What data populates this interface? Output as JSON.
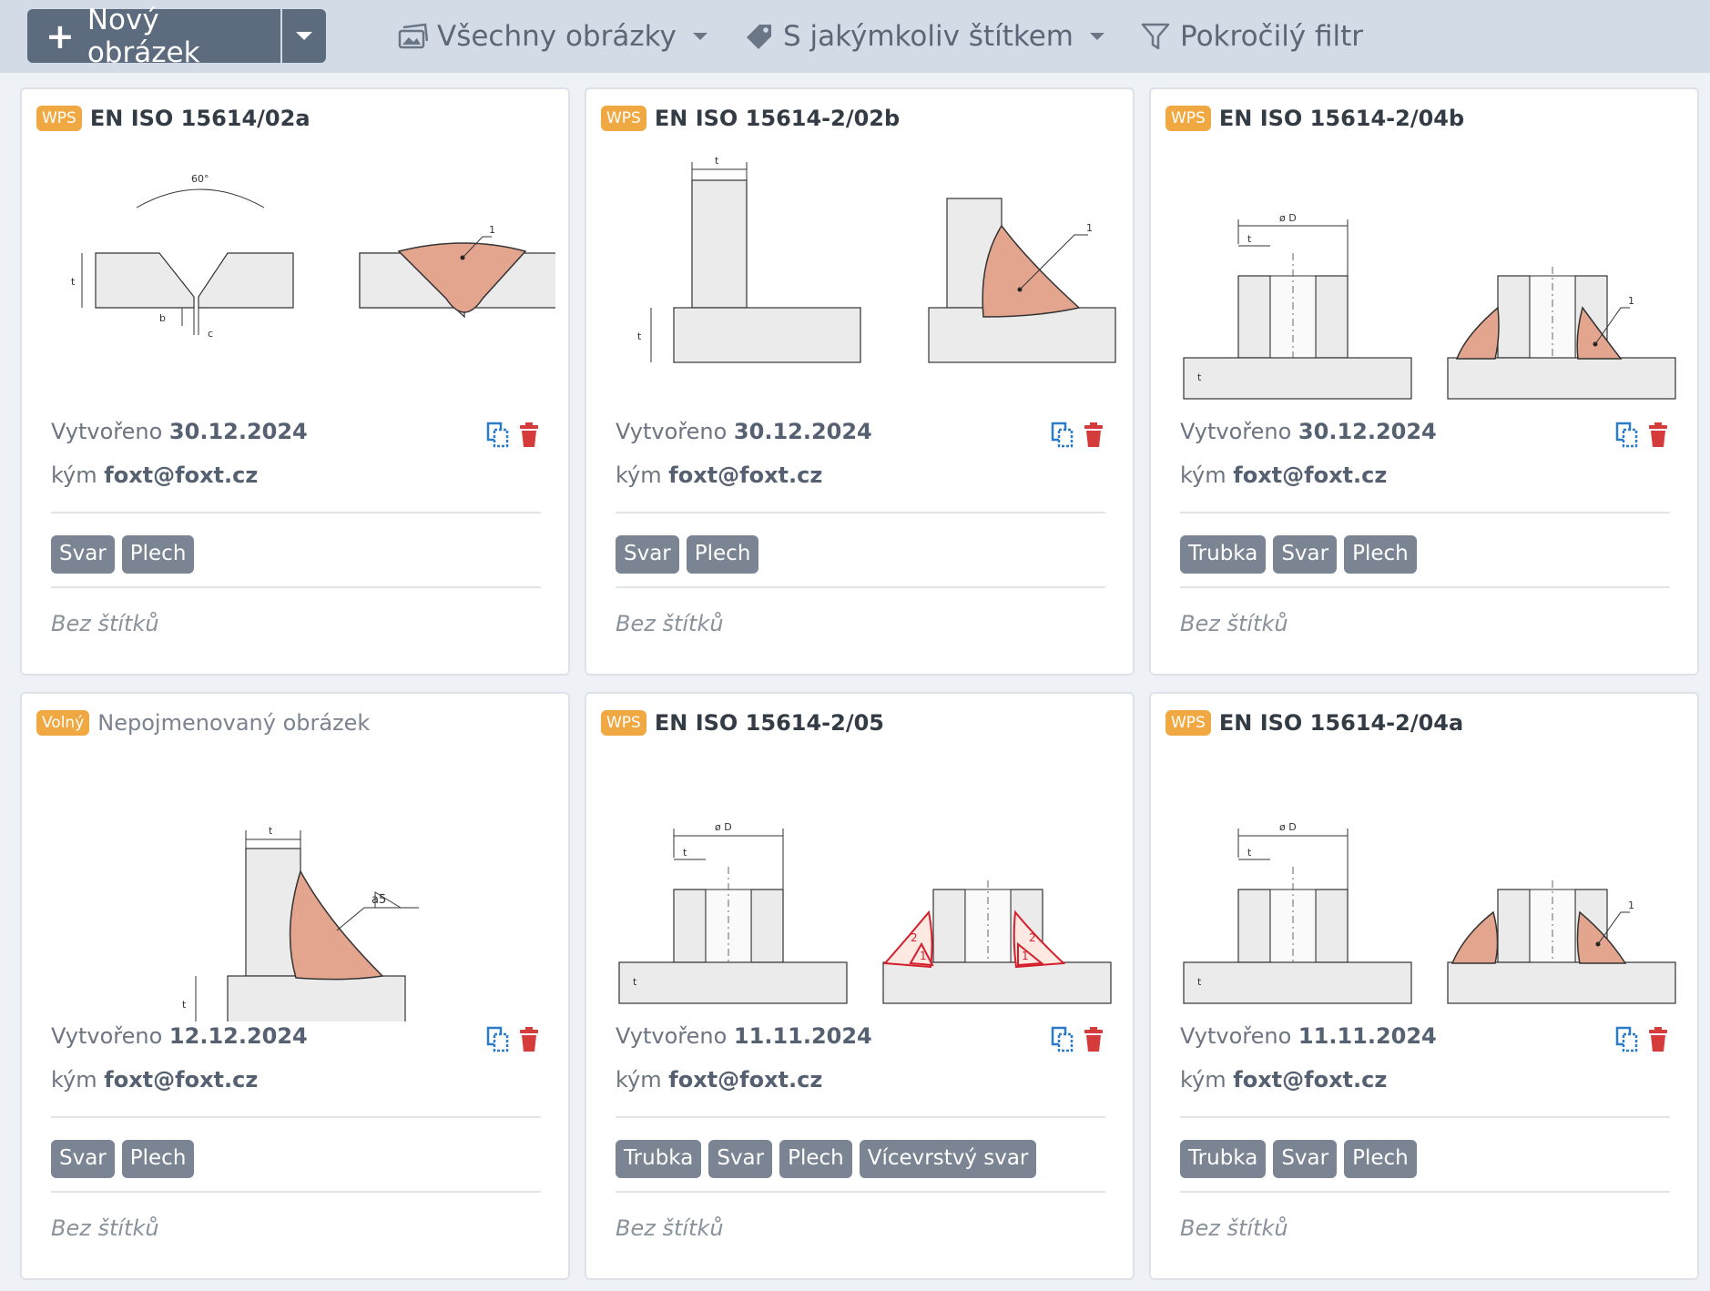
{
  "toolbar": {
    "new_label": "Nový obrázek",
    "filter_images": "Všechny obrázky",
    "filter_tags": "S jakýmkoliv štítkem",
    "advanced_filter": "Pokročilý filtr"
  },
  "labels": {
    "created": "Vytvořeno",
    "by": "kým",
    "no_labels": "Bez štítků"
  },
  "colors": {
    "accent": "#f0a942",
    "toolbar_bg": "#d3dbe6",
    "button": "#5c6b7e",
    "tag_bg": "#7a8492",
    "delete": "#d63b3b",
    "copy": "#2a7bc9"
  },
  "cards": [
    {
      "badge": "WPS",
      "title": "EN ISO 15614/02a",
      "date": "30.12.2024",
      "author": "foxt@foxt.cz",
      "tags": [
        "Svar",
        "Plech"
      ],
      "drawing": {
        "angle": "60°",
        "t": "t",
        "b": "b",
        "c": "c",
        "n1": "1"
      }
    },
    {
      "badge": "WPS",
      "title": "EN ISO 15614-2/02b",
      "date": "30.12.2024",
      "author": "foxt@foxt.cz",
      "tags": [
        "Svar",
        "Plech"
      ],
      "drawing": {
        "t2": "t",
        "t1": "t",
        "n1": "1"
      }
    },
    {
      "badge": "WPS",
      "title": "EN ISO 15614-2/04b",
      "date": "30.12.2024",
      "author": "foxt@foxt.cz",
      "tags": [
        "Trubka",
        "Svar",
        "Plech"
      ],
      "drawing": {
        "d": "ø D",
        "t": "t",
        "t2": "t",
        "n1": "1"
      }
    },
    {
      "badge": "Volný",
      "title": "Nepojmenovaný obrázek",
      "date": "12.12.2024",
      "author": "foxt@foxt.cz",
      "tags": [
        "Svar",
        "Plech"
      ],
      "drawing": {
        "t2": "t",
        "t1": "t",
        "a": "a5"
      }
    },
    {
      "badge": "WPS",
      "title": "EN ISO 15614-2/05",
      "date": "11.11.2024",
      "author": "foxt@foxt.cz",
      "tags": [
        "Trubka",
        "Svar",
        "Plech",
        "Vícevrstvý svar"
      ],
      "drawing": {
        "d": "ø D",
        "t": "t",
        "t2": "t",
        "n1": "1",
        "n2": "2"
      }
    },
    {
      "badge": "WPS",
      "title": "EN ISO 15614-2/04a",
      "date": "11.11.2024",
      "author": "foxt@foxt.cz",
      "tags": [
        "Trubka",
        "Svar",
        "Plech"
      ],
      "drawing": {
        "d": "ø D",
        "t": "t",
        "t2": "t",
        "n1": "1"
      }
    }
  ]
}
